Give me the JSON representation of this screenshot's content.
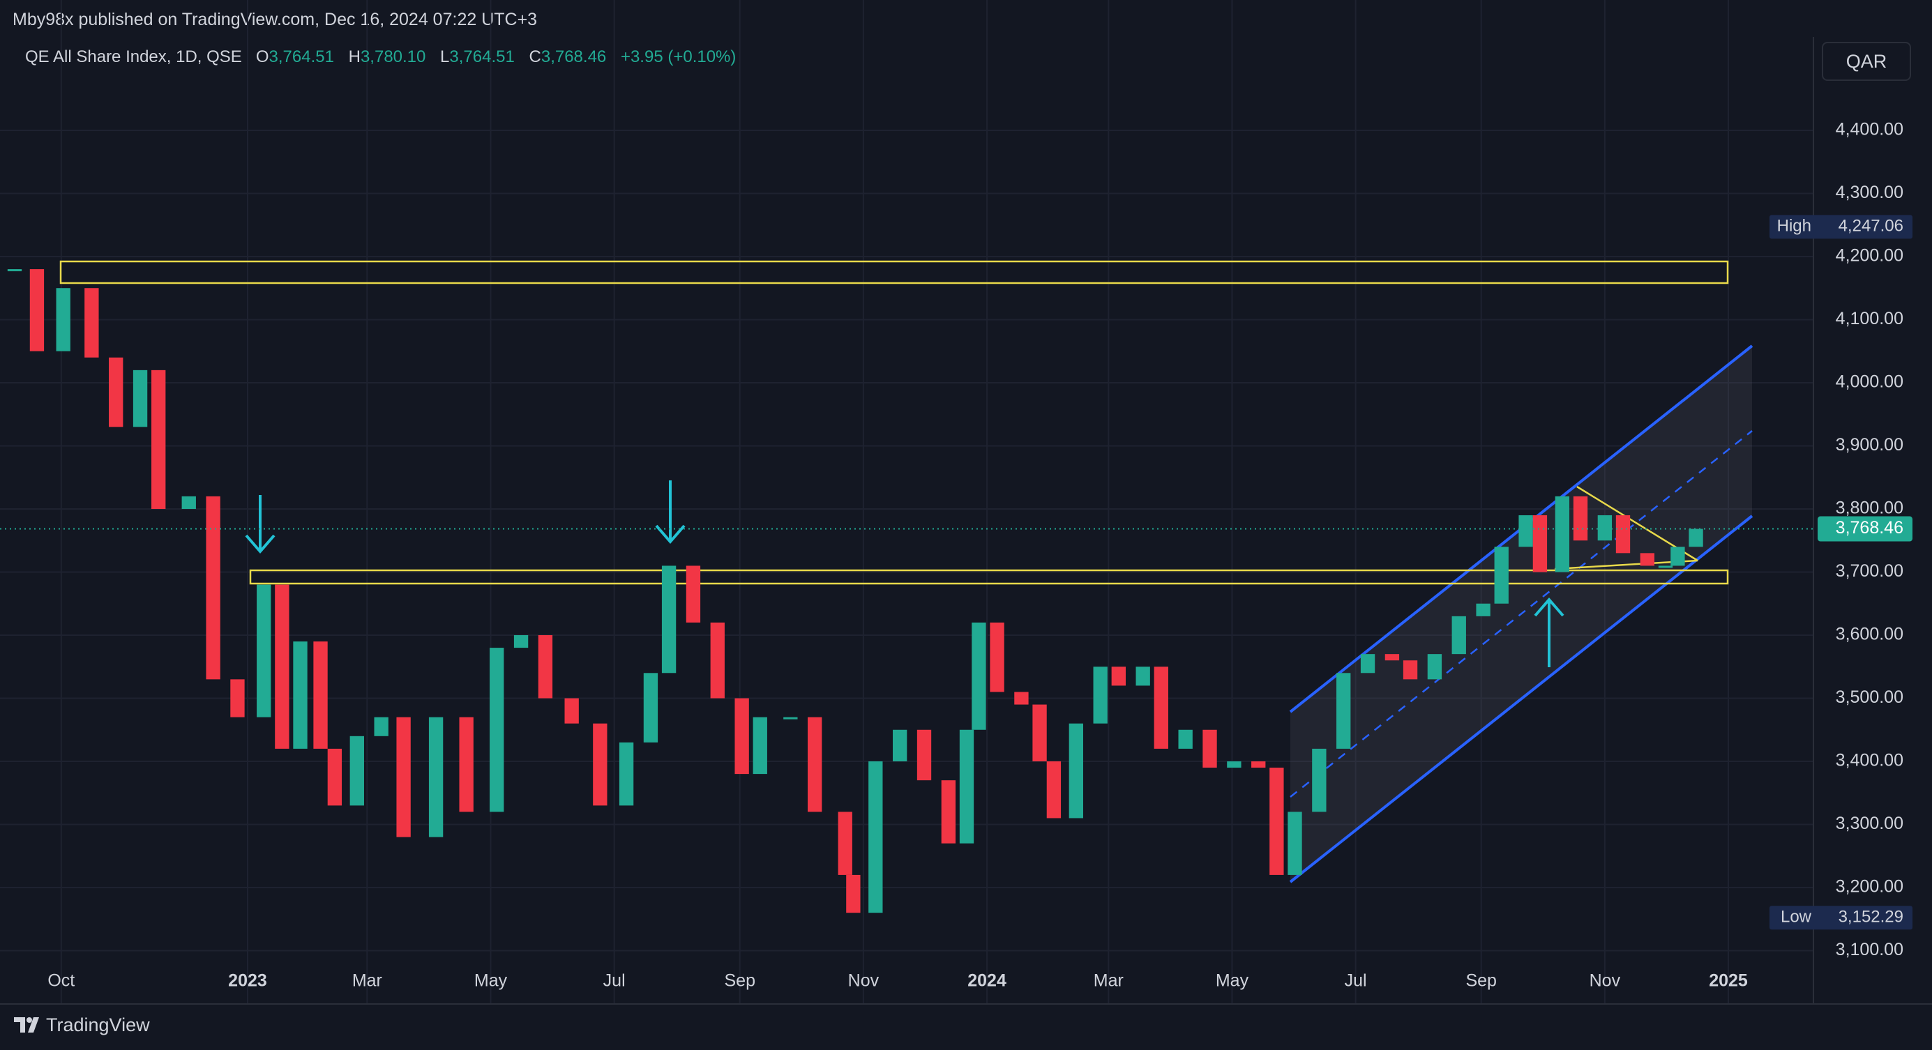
{
  "header": {
    "publisher": "Mby98x published on TradingView.com, Dec 16, 2024 07:22 UTC+3"
  },
  "legend": {
    "symbol": "QE All Share Index, 1D, QSE",
    "open_label": "O",
    "open": "3,764.51",
    "high_label": "H",
    "high": "3,780.10",
    "low_label": "L",
    "low": "3,764.51",
    "close_label": "C",
    "close": "3,768.46",
    "change": "+3.95 (+0.10%)"
  },
  "currency": "QAR",
  "footer": {
    "brand": "TradingView"
  },
  "chart_data": {
    "type": "candlestick",
    "grid": true,
    "up_color": "#22ab94",
    "down_color": "#f23645",
    "x": [
      "2022-09-08",
      "2022-09-19",
      "2022-10-02",
      "2022-10-16",
      "2022-10-28",
      "2022-11-09",
      "2022-11-18",
      "2022-12-03",
      "2022-12-15",
      "2022-12-27",
      "2023-01-09",
      "2023-01-18",
      "2023-01-27",
      "2023-02-06",
      "2023-02-13",
      "2023-02-24",
      "2023-03-08",
      "2023-03-19",
      "2023-04-04",
      "2023-04-19",
      "2023-05-04",
      "2023-05-16",
      "2023-05-28",
      "2023-06-10",
      "2023-06-24",
      "2023-07-07",
      "2023-07-19",
      "2023-07-28",
      "2023-08-09",
      "2023-08-21",
      "2023-09-02",
      "2023-09-11",
      "2023-09-26",
      "2023-10-08",
      "2023-10-23",
      "2023-10-27",
      "2023-11-07",
      "2023-11-19",
      "2023-12-01",
      "2023-12-13",
      "2023-12-22",
      "2023-12-28",
      "2024-01-06",
      "2024-01-18",
      "2024-01-27",
      "2024-02-03",
      "2024-02-14",
      "2024-02-26",
      "2024-03-06",
      "2024-03-18",
      "2024-03-27",
      "2024-04-08",
      "2024-04-20",
      "2024-05-02",
      "2024-05-14",
      "2024-05-23",
      "2024-06-01",
      "2024-06-13",
      "2024-06-25",
      "2024-07-07",
      "2024-07-19",
      "2024-07-28",
      "2024-08-09",
      "2024-08-21",
      "2024-09-02",
      "2024-09-11",
      "2024-09-23",
      "2024-09-30",
      "2024-10-11",
      "2024-10-20",
      "2024-11-01",
      "2024-11-10",
      "2024-11-22",
      "2024-12-01",
      "2024-12-07",
      "2024-12-16"
    ],
    "values": [
      4180,
      4050,
      4150,
      4040,
      3930,
      4020,
      3800,
      3820,
      3530,
      3470,
      3680,
      3420,
      3590,
      3420,
      3330,
      3440,
      3470,
      3280,
      3470,
      3320,
      3580,
      3600,
      3500,
      3460,
      3330,
      3430,
      3540,
      3710,
      3620,
      3500,
      3380,
      3470,
      3470,
      3320,
      3220,
      3160,
      3400,
      3450,
      3370,
      3270,
      3450,
      3620,
      3510,
      3490,
      3400,
      3310,
      3460,
      3550,
      3520,
      3550,
      3420,
      3450,
      3390,
      3400,
      3390,
      3220,
      3320,
      3420,
      3540,
      3570,
      3560,
      3530,
      3570,
      3630,
      3650,
      3740,
      3790,
      3700,
      3820,
      3750,
      3790,
      3730,
      3710,
      3710,
      3740,
      3768.46
    ],
    "xlim": [
      "2022-09-08",
      "2025-02-12"
    ],
    "xticks": [
      {
        "value": "2022-10",
        "label": "Oct"
      },
      {
        "value": "2023-01",
        "label": "2023"
      },
      {
        "value": "2023-03",
        "label": "Mar"
      },
      {
        "value": "2023-05",
        "label": "May"
      },
      {
        "value": "2023-07",
        "label": "Jul"
      },
      {
        "value": "2023-09",
        "label": "Sep"
      },
      {
        "value": "2023-11",
        "label": "Nov"
      },
      {
        "value": "2024-01",
        "label": "2024"
      },
      {
        "value": "2024-03",
        "label": "Mar"
      },
      {
        "value": "2024-05",
        "label": "May"
      },
      {
        "value": "2024-07",
        "label": "Jul"
      },
      {
        "value": "2024-09",
        "label": "Sep"
      },
      {
        "value": "2024-11",
        "label": "Nov"
      },
      {
        "value": "2025-01",
        "label": "2025"
      }
    ],
    "ylim": [
      3084,
      4548
    ],
    "yticks": [
      {
        "value": 3100,
        "label": "3,100.00"
      },
      {
        "value": 3200,
        "label": "3,200.00"
      },
      {
        "value": 3300,
        "label": "3,300.00"
      },
      {
        "value": 3400,
        "label": "3,400.00"
      },
      {
        "value": 3500,
        "label": "3,500.00"
      },
      {
        "value": 3600,
        "label": "3,600.00"
      },
      {
        "value": 3700,
        "label": "3,700.00"
      },
      {
        "value": 3800,
        "label": "3,800.00"
      },
      {
        "value": 3900,
        "label": "3,900.00"
      },
      {
        "value": 4000,
        "label": "4,000.00"
      },
      {
        "value": 4100,
        "label": "4,100.00"
      },
      {
        "value": 4200,
        "label": "4,200.00"
      },
      {
        "value": 4300,
        "label": "4,300.00"
      },
      {
        "value": 4400,
        "label": "4,400.00"
      }
    ],
    "high_tag": "High",
    "high_value": {
      "value": 4247.06,
      "label": "4,247.06"
    },
    "low_tag": "Low",
    "low_value": {
      "value": 3152.29,
      "label": "3,152.29"
    },
    "last_value": {
      "value": 3768.46,
      "label": "3,768.46"
    }
  }
}
